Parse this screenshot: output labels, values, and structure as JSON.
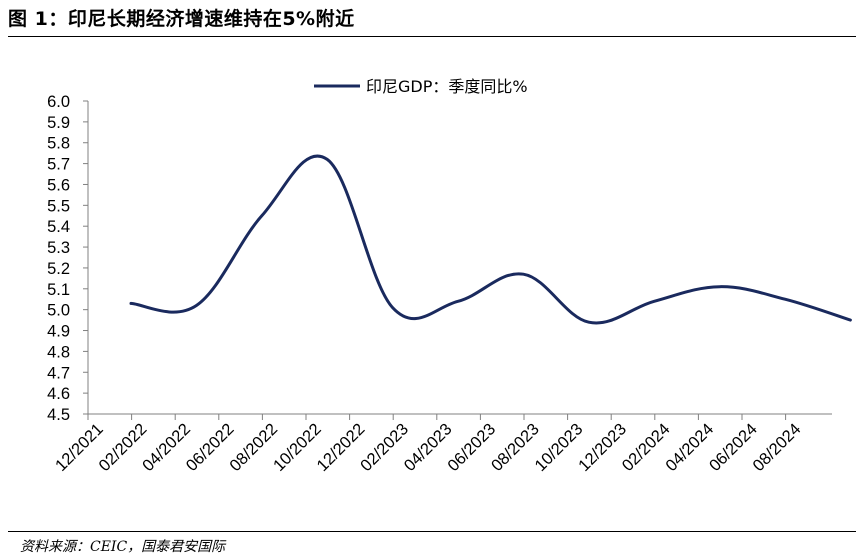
{
  "figure": {
    "title": "图 1：印尼长期经济增速维持在5%附近",
    "source": "资料来源：CEIC，国泰君安国际"
  },
  "chart_data": {
    "type": "line",
    "ylim": [
      4.5,
      6.0
    ],
    "y_ticks": [
      "6.0",
      "5.9",
      "5.8",
      "5.7",
      "5.6",
      "5.5",
      "5.4",
      "5.3",
      "5.2",
      "5.1",
      "5.0",
      "4.9",
      "4.8",
      "4.7",
      "4.6",
      "4.5"
    ],
    "x_tick_labels": [
      "12/2021",
      "02/2022",
      "04/2022",
      "06/2022",
      "08/2022",
      "10/2022",
      "12/2022",
      "02/2023",
      "04/2023",
      "06/2023",
      "08/2023",
      "10/2023",
      "12/2023",
      "02/2024",
      "04/2024",
      "06/2024",
      "08/2024"
    ],
    "legend_position": "top-center",
    "grid": false,
    "line_color": "#1a2a5e",
    "series": [
      {
        "name": "印尼GDP：季度同比%",
        "x": [
          "12/2021",
          "03/2022",
          "06/2022",
          "09/2022",
          "12/2022",
          "03/2023",
          "06/2023",
          "09/2023",
          "12/2023",
          "03/2024",
          "06/2024",
          "09/2024"
        ],
        "values": [
          5.03,
          5.02,
          5.45,
          5.72,
          5.01,
          5.04,
          5.17,
          4.94,
          5.04,
          5.11,
          5.05,
          4.95
        ]
      }
    ]
  }
}
